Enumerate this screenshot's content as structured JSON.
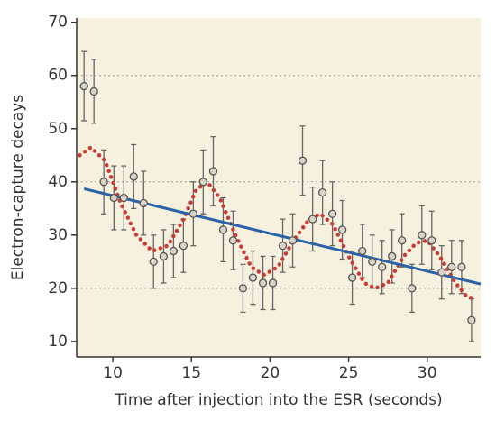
{
  "chart_data": {
    "type": "scatter",
    "x_label": "Time after injection into the ESR (seconds)",
    "y_label": "Electron-capture decays",
    "xlim": [
      7.7,
      33.4
    ],
    "ylim": [
      7.1,
      70.8
    ],
    "xticks": [
      10,
      15,
      20,
      25,
      30
    ],
    "yticks": [
      10,
      20,
      30,
      40,
      50,
      60,
      70
    ],
    "ygrid": [
      20,
      40,
      60
    ],
    "background": "#f6f0df",
    "series": [
      {
        "type": "scatter",
        "color": "#d9d4c8",
        "edge_color": "#555555",
        "x": [
          8.17,
          8.8,
          9.43,
          10.07,
          10.7,
          11.33,
          11.96,
          12.59,
          13.23,
          13.86,
          14.49,
          15.12,
          15.75,
          16.39,
          17.02,
          17.65,
          18.28,
          18.91,
          19.55,
          20.18,
          20.81,
          21.44,
          22.07,
          22.71,
          23.34,
          23.97,
          24.6,
          25.23,
          25.87,
          26.5,
          27.13,
          27.76,
          28.39,
          29.03,
          29.66,
          30.29,
          30.92,
          31.55,
          32.19,
          32.82
        ],
        "values": [
          58,
          57,
          40,
          37,
          37,
          41,
          36,
          25,
          26,
          27,
          28,
          34,
          40,
          42,
          31,
          29,
          20,
          22,
          21,
          21,
          28,
          29,
          44,
          33,
          38,
          34,
          31,
          22,
          27,
          25,
          24,
          26,
          29,
          20,
          30,
          29,
          23,
          24,
          24,
          14
        ],
        "errors": [
          6.5,
          6,
          6,
          6,
          6,
          6,
          6,
          5,
          5,
          5,
          5,
          6,
          6,
          6.5,
          6,
          5.5,
          4.5,
          5,
          5,
          5,
          5,
          5,
          6.5,
          6,
          6,
          6,
          5.5,
          5,
          5,
          5,
          5,
          5,
          5,
          4.5,
          5.5,
          5.5,
          5,
          5,
          5,
          4
        ]
      },
      {
        "type": "line",
        "color": "#2a62a6",
        "x": [
          8.17,
          33.4
        ],
        "values": [
          38.7,
          20.8
        ]
      },
      {
        "type": "dotted",
        "color": "#c93b33",
        "x": [
          7.9,
          8.6,
          9.5,
          10.5,
          11.5,
          12.5,
          13.5,
          14.5,
          15.3,
          16.0,
          16.8,
          17.8,
          18.8,
          19.6,
          20.5,
          21.5,
          22.5,
          23.2,
          24.0,
          25.0,
          26.0,
          26.7,
          27.5,
          28.5,
          29.3,
          30.0,
          30.8,
          31.8,
          32.5,
          33.0
        ],
        "values": [
          45,
          46.5,
          44,
          36,
          30,
          27,
          28,
          33,
          38.5,
          40,
          37,
          30,
          24,
          22.5,
          24,
          29,
          33,
          34,
          32,
          26,
          21,
          20,
          21,
          26,
          28.5,
          29,
          26,
          21,
          18.5,
          18
        ]
      }
    ]
  }
}
